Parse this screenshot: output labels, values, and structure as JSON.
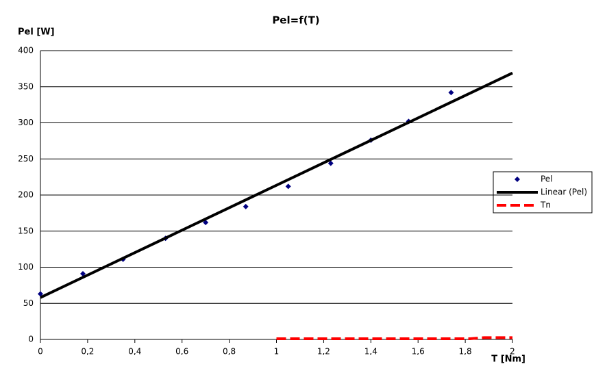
{
  "chart_data": {
    "type": "scatter",
    "title": "Pel=f(T)",
    "y_label": "Pel [W]",
    "x_label": "T [Nm]",
    "xlim": [
      0,
      2
    ],
    "ylim": [
      0,
      400
    ],
    "xticks": [
      0,
      {
        "value": 0.2,
        "label": "0,2"
      },
      {
        "value": 0.4,
        "label": "0,4"
      },
      {
        "value": 0.6,
        "label": "0,6"
      },
      {
        "value": 0.8,
        "label": "0,8"
      },
      1,
      {
        "value": 1.2,
        "label": "1,2"
      },
      {
        "value": 1.4,
        "label": "1,4"
      },
      {
        "value": 1.6,
        "label": "1,6"
      },
      {
        "value": 1.8,
        "label": "1,8"
      },
      2
    ],
    "yticks": [
      0,
      50,
      100,
      150,
      200,
      250,
      300,
      350,
      400
    ],
    "grid": true,
    "legend": "right",
    "series": [
      {
        "name": "Pel",
        "color": "#000080",
        "style": "marker",
        "x": [
          0,
          0.18,
          0.35,
          0.53,
          0.7,
          0.87,
          1.05,
          1.23,
          1.4,
          1.56,
          1.74
        ],
        "values": [
          63,
          91,
          111,
          140,
          162,
          184,
          212,
          244,
          276,
          302,
          342
        ]
      },
      {
        "name": "Linear (Pel)",
        "color": "#000000",
        "style": "line",
        "x": [
          0,
          2
        ],
        "values": [
          58,
          369
        ]
      },
      {
        "name": "Tn",
        "color": "#ff0000",
        "style": "dashed",
        "x": [
          1,
          1.82,
          1.88,
          2
        ],
        "values": [
          1,
          1,
          2.5,
          2.5
        ]
      }
    ]
  }
}
